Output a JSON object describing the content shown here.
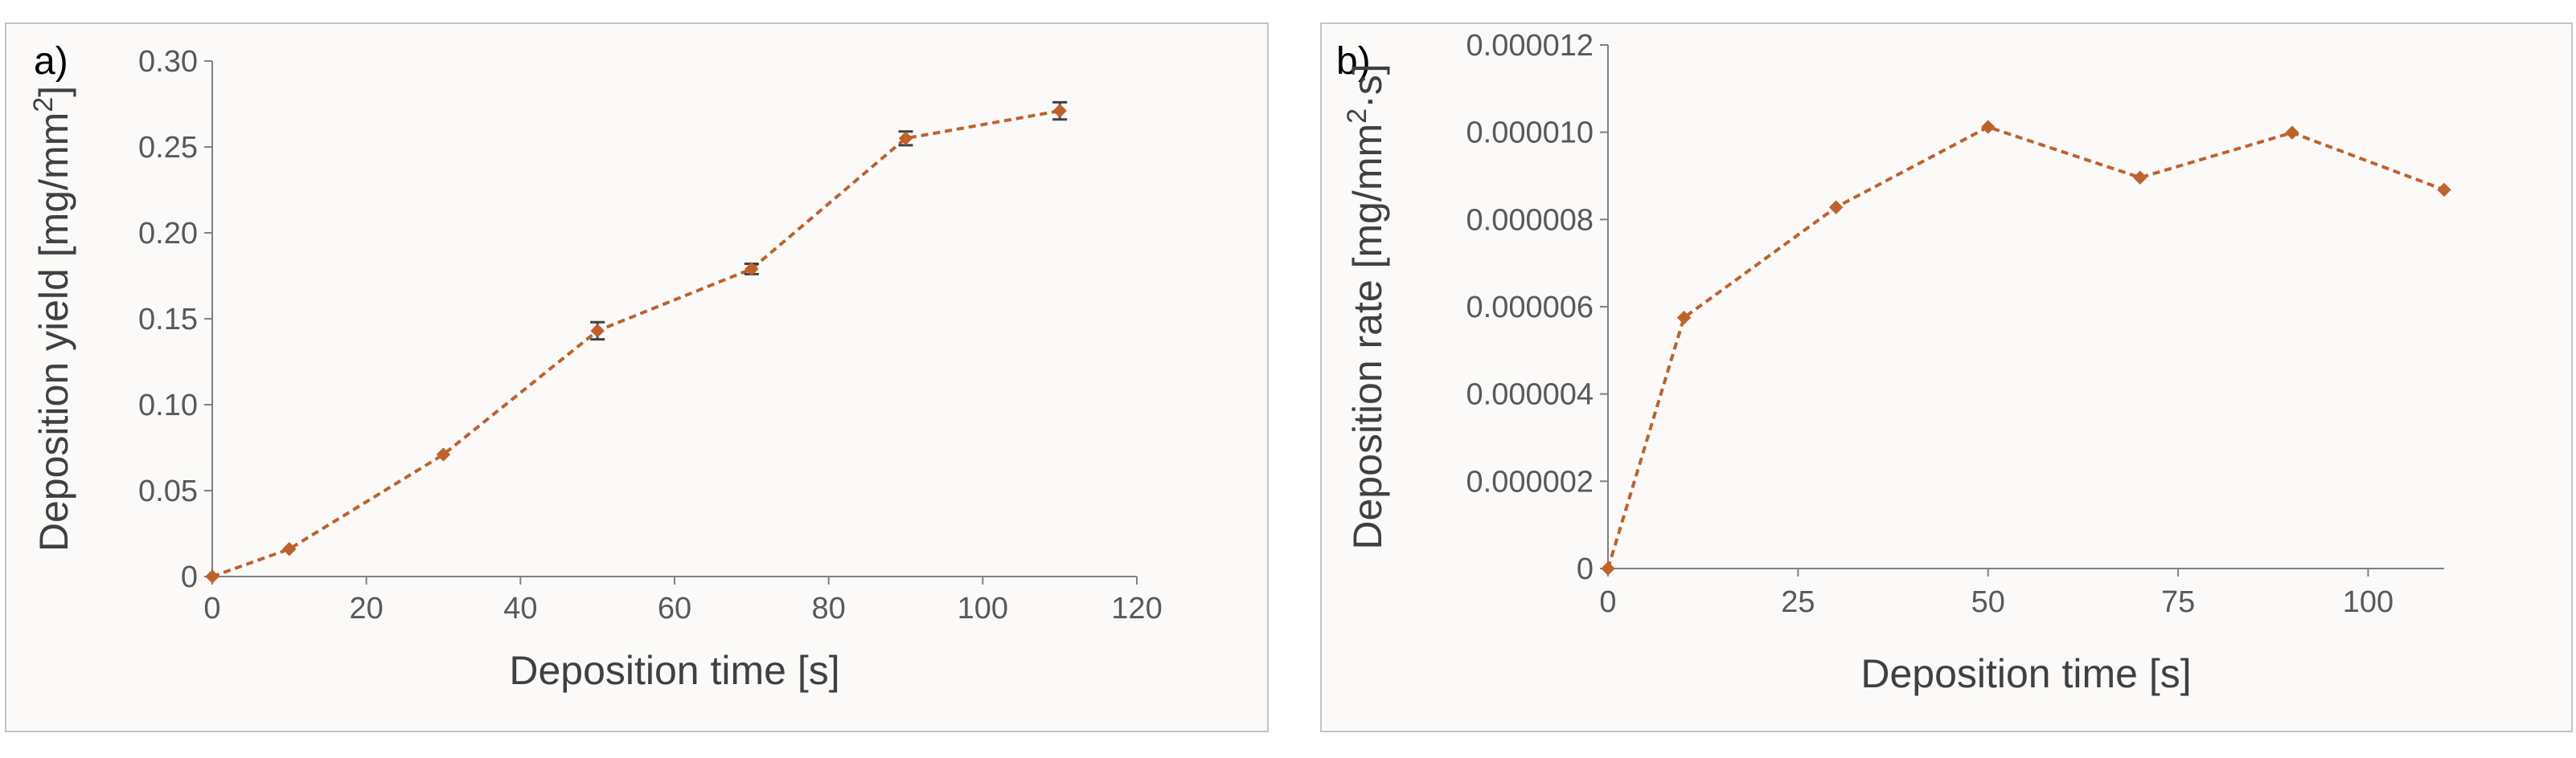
{
  "figure": {
    "colors": {
      "series": "#c0612b",
      "axis": "#808080",
      "errorbar": "#404040"
    }
  },
  "chart_data": [
    {
      "panel_label": "a)",
      "type": "line",
      "title": "",
      "xlabel": "Deposition time [s]",
      "ylabel_main": "Deposition yield [mg/mm",
      "ylabel_sup": "2",
      "ylabel_end": "]",
      "xlim": [
        0,
        120
      ],
      "ylim": [
        0,
        0.3
      ],
      "x_ticks": [
        0,
        20,
        40,
        60,
        80,
        100,
        120
      ],
      "x_tick_labels": [
        "0",
        "20",
        "40",
        "60",
        "80",
        "100",
        "120"
      ],
      "y_ticks": [
        0,
        0.05,
        0.1,
        0.15,
        0.2,
        0.25,
        0.3
      ],
      "y_tick_labels": [
        "0",
        "0.05",
        "0.10",
        "0.15",
        "0.20",
        "0.25",
        "0.30"
      ],
      "grid": false,
      "series": [
        {
          "name": "Deposition yield",
          "style": "dashed",
          "marker": "diamond",
          "x": [
            0,
            10,
            30,
            50,
            70,
            90,
            110
          ],
          "y": [
            0,
            0.016,
            0.071,
            0.143,
            0.179,
            0.255,
            0.271
          ],
          "error": [
            0,
            0,
            0,
            0.005,
            0.003,
            0.004,
            0.005
          ]
        }
      ]
    },
    {
      "panel_label": "b)",
      "type": "line",
      "title": "",
      "xlabel": "Deposition time [s]",
      "ylabel_main": "Deposition rate [mg/mm",
      "ylabel_sup": "2",
      "ylabel_end": "·s]",
      "xlim": [
        0,
        110
      ],
      "ylim": [
        0,
        1.2e-05
      ],
      "x_ticks": [
        0,
        25,
        50,
        75,
        100
      ],
      "x_tick_labels": [
        "0",
        "25",
        "50",
        "75",
        "100"
      ],
      "y_ticks": [
        0,
        2e-06,
        4e-06,
        6e-06,
        8e-06,
        1e-05,
        1.2e-05
      ],
      "y_tick_labels": [
        "0",
        "0.000002",
        "0.000004",
        "0.000006",
        "0.000008",
        "0.000010",
        "0.000012"
      ],
      "grid": false,
      "series": [
        {
          "name": "Deposition rate",
          "style": "dashed",
          "marker": "diamond",
          "x": [
            0,
            10,
            30,
            50,
            70,
            90,
            110
          ],
          "y": [
            0,
            5.75e-06,
            8.28e-06,
            1.012e-05,
            8.96e-06,
            9.99e-06,
            8.68e-06
          ]
        }
      ]
    }
  ]
}
